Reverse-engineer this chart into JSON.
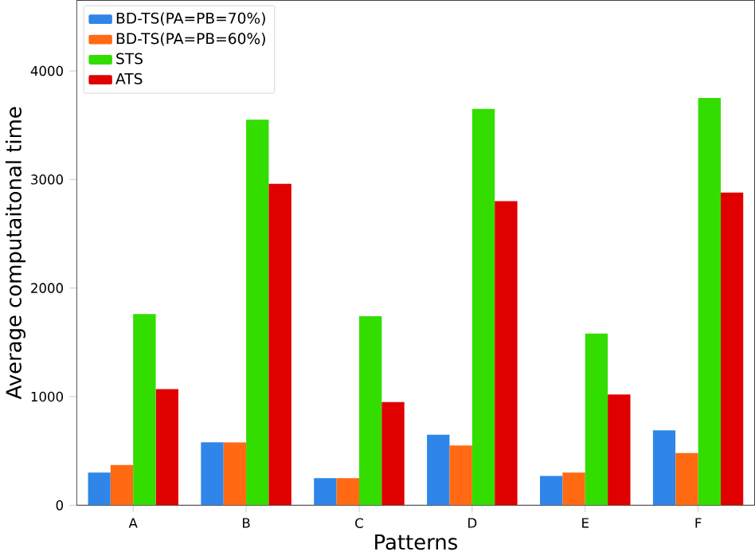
{
  "chart_data": {
    "type": "bar",
    "xlabel": "Patterns",
    "ylabel": "Average computaitonal time",
    "categories": [
      "A",
      "B",
      "C",
      "D",
      "E",
      "F"
    ],
    "series": [
      {
        "name": "BD-TS(PA=PB=70%)",
        "color": "#2f86e8",
        "values": [
          300,
          580,
          250,
          650,
          270,
          690
        ]
      },
      {
        "name": "BD-TS(PA=PB=60%)",
        "color": "#ff6a13",
        "values": [
          370,
          580,
          250,
          550,
          300,
          480
        ]
      },
      {
        "name": "STS",
        "color": "#33dd00",
        "values": [
          1760,
          3550,
          1740,
          3650,
          1580,
          3750
        ]
      },
      {
        "name": "ATS",
        "color": "#e00000",
        "values": [
          1070,
          2960,
          950,
          2800,
          1020,
          2880
        ]
      }
    ],
    "ylim": [
      0,
      4650
    ],
    "yticks": [
      0,
      1000,
      2000,
      3000,
      4000
    ],
    "legend": "top left"
  }
}
